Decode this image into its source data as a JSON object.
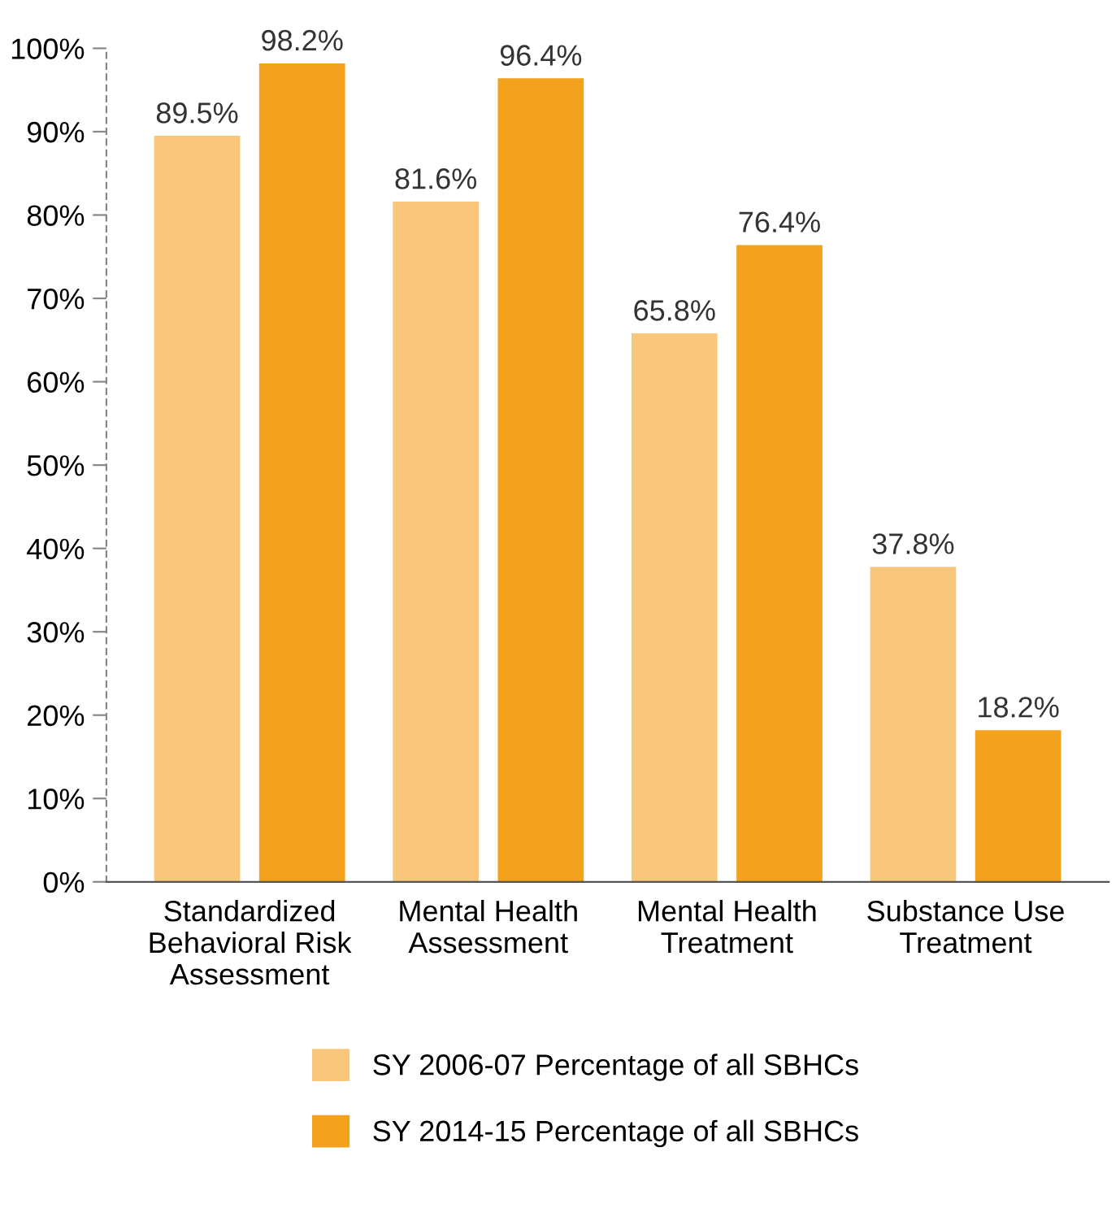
{
  "chart_data": {
    "type": "bar",
    "categories": [
      "Standardized\nBehavioral Risk\nAssessment",
      "Mental Health\nAssessment",
      "Mental Health\nTreatment",
      "Substance Use\nTreatment"
    ],
    "series": [
      {
        "name": "SY 2006-07 Percentage of all SBHCs",
        "color": "#f8c77b",
        "values": [
          89.5,
          81.6,
          65.8,
          37.8
        ],
        "value_labels": [
          "89.5%",
          "81.6%",
          "65.8%",
          "37.8%"
        ]
      },
      {
        "name": "SY 2014-15 Percentage of all SBHCs",
        "color": "#f4a11d",
        "values": [
          98.2,
          96.4,
          76.4,
          18.2
        ],
        "value_labels": [
          "98.2%",
          "96.4%",
          "76.4%",
          "18.2%"
        ]
      }
    ],
    "ylim": [
      0,
      100
    ],
    "yticks": [
      {
        "value": 0,
        "label": "0%"
      },
      {
        "value": 10,
        "label": "10%"
      },
      {
        "value": 20,
        "label": "20%"
      },
      {
        "value": 30,
        "label": "30%"
      },
      {
        "value": 40,
        "label": "40%"
      },
      {
        "value": 50,
        "label": "50%"
      },
      {
        "value": 60,
        "label": "60%"
      },
      {
        "value": 70,
        "label": "70%"
      },
      {
        "value": 80,
        "label": "80%"
      },
      {
        "value": 90,
        "label": "90%"
      },
      {
        "value": 100,
        "label": "100%"
      }
    ],
    "legend": "bottom"
  }
}
